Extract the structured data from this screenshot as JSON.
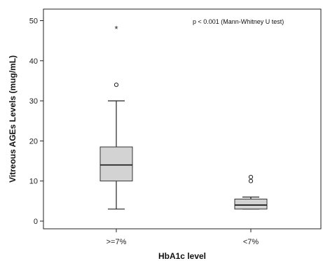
{
  "chart_data": {
    "type": "box",
    "xlabel": "HbA1c level",
    "ylabel": "Vitreous AGEs Levels (mug/mL)",
    "annotation": "p < 0.001 (Mann-Whitney U test)",
    "ylim": [
      -2,
      52
    ],
    "yticks": [
      0,
      10,
      20,
      30,
      40,
      50
    ],
    "grid": false,
    "box_color": "#d3d3d3",
    "categories": [
      ">=7%",
      "<7%"
    ],
    "boxes": [
      {
        "category": ">=7%",
        "whisker_low": 3,
        "q1": 10,
        "median": 14,
        "q3": 18.5,
        "whisker_high": 30,
        "outliers": [
          34
        ],
        "extremes": [
          48
        ]
      },
      {
        "category": "<7%",
        "whisker_low": 3,
        "q1": 3,
        "median": 4,
        "q3": 5.5,
        "whisker_high": 6,
        "outliers": [
          10,
          11
        ],
        "extremes": []
      }
    ]
  }
}
